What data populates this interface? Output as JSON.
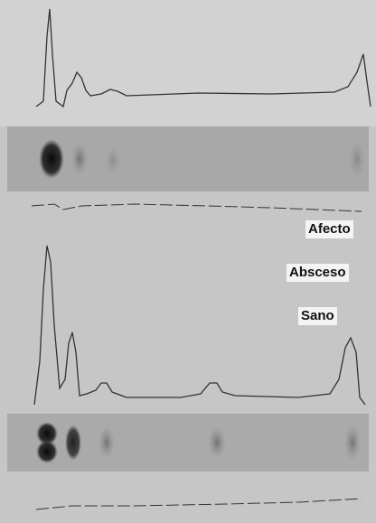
{
  "labels": [
    "Afecto",
    "Absceso",
    "Sano"
  ]
}
